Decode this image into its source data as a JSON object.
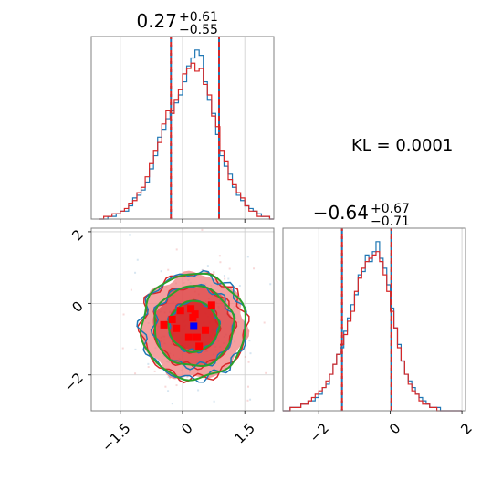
{
  "colors": {
    "blue": "#1f77b4",
    "red": "#d62728",
    "green": "#2ca02c",
    "fill_dark": "#d62728",
    "fill_light": "#f08080",
    "grid": "#cccccc"
  },
  "annotation": {
    "kl_text": "KL = 0.0001"
  },
  "chart_data": [
    {
      "panel": "x-marginal",
      "type": "histogram",
      "title": {
        "value": "0.27",
        "plus": "+0.61",
        "minus": "−0.55"
      },
      "xlim": [
        -2.2,
        2.2
      ],
      "quantiles": [
        -0.28,
        0.88
      ],
      "x_ticks": [
        -1.5,
        0.0,
        1.5
      ],
      "bin_start": -2.0,
      "bin_width": 0.1,
      "series": [
        {
          "name": "blue",
          "values": [
            0,
            0,
            1,
            1,
            2,
            3,
            3,
            5,
            8,
            9,
            11,
            14,
            19,
            24,
            31,
            34,
            38,
            41,
            44,
            47,
            52,
            58,
            61,
            64,
            62,
            52,
            45,
            40,
            32,
            24,
            20,
            17,
            12,
            9,
            7,
            5,
            4,
            3,
            2,
            1,
            1,
            0
          ]
        },
        {
          "name": "red",
          "values": [
            0,
            1,
            1,
            2,
            2,
            3,
            4,
            6,
            7,
            10,
            12,
            16,
            21,
            26,
            29,
            36,
            41,
            40,
            45,
            49,
            55,
            57,
            59,
            56,
            57,
            51,
            47,
            39,
            35,
            26,
            22,
            15,
            13,
            10,
            8,
            5,
            3,
            3,
            1,
            1,
            1,
            0
          ]
        }
      ]
    },
    {
      "panel": "y-marginal",
      "type": "histogram",
      "title": {
        "value": "−0.64",
        "plus": "+0.67",
        "minus": "−0.71"
      },
      "xlim": [
        -3.0,
        2.1
      ],
      "quantiles": [
        -1.35,
        0.03
      ],
      "x_ticks": [
        -2,
        0,
        2
      ],
      "bin_start": -3.0,
      "bin_width": 0.1,
      "series": [
        {
          "name": "blue",
          "values": [
            0,
            0,
            1,
            1,
            1,
            2,
            2,
            3,
            3,
            4,
            5,
            7,
            8,
            11,
            14,
            17,
            19,
            24,
            28,
            32,
            35,
            41,
            42,
            47,
            45,
            48,
            51,
            46,
            43,
            38,
            31,
            25,
            20,
            15,
            11,
            9,
            7,
            5,
            4,
            3,
            2,
            1,
            1,
            1,
            0,
            0,
            0,
            0,
            0,
            0
          ]
        },
        {
          "name": "red",
          "values": [
            0,
            0,
            1,
            1,
            1,
            2,
            2,
            3,
            4,
            5,
            6,
            7,
            9,
            11,
            14,
            17,
            20,
            23,
            27,
            30,
            36,
            40,
            43,
            45,
            46,
            47,
            48,
            45,
            41,
            36,
            30,
            25,
            19,
            15,
            11,
            8,
            6,
            5,
            3,
            2,
            2,
            1,
            1,
            0,
            0,
            0,
            0,
            0,
            0,
            0
          ]
        }
      ]
    },
    {
      "panel": "joint",
      "type": "contour",
      "xlim": [
        -2.2,
        2.2
      ],
      "ylim": [
        -3.0,
        2.1
      ],
      "x_ticks": [
        -1.5,
        0.0,
        1.5
      ],
      "y_ticks": [
        -2,
        0,
        2
      ],
      "center": [
        0.27,
        -0.64
      ],
      "spread": [
        0.6,
        0.7
      ],
      "contour_levels_sigma": [
        1.0,
        1.6,
        2.1
      ],
      "mode_marker": [
        0.27,
        -0.64
      ],
      "red_squares": [
        [
          -0.05,
          -0.2
        ],
        [
          0.3,
          -0.3
        ],
        [
          0.7,
          -0.05
        ],
        [
          -0.15,
          -0.7
        ],
        [
          0.25,
          -0.4
        ],
        [
          0.35,
          -0.95
        ],
        [
          0.15,
          -0.95
        ],
        [
          0.55,
          -0.75
        ],
        [
          -0.45,
          -0.6
        ],
        [
          0.4,
          -1.2
        ],
        [
          0.2,
          -0.15
        ],
        [
          -0.25,
          -0.45
        ]
      ]
    }
  ]
}
